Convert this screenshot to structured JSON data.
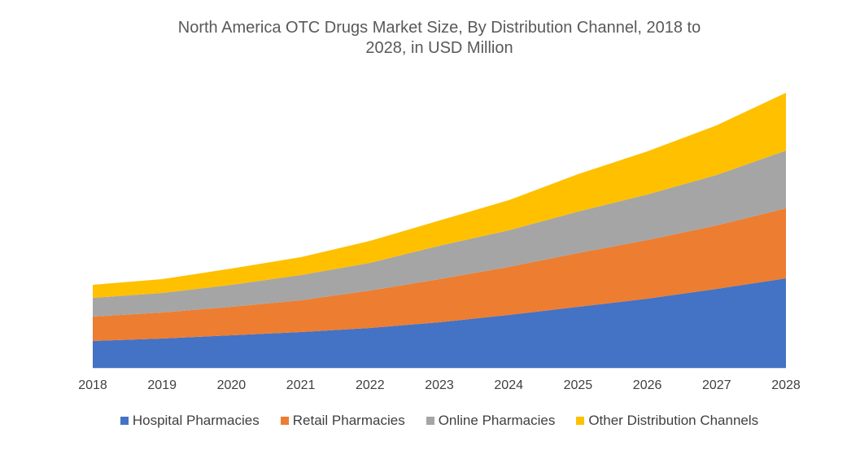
{
  "chart_data": {
    "type": "area",
    "stacked": true,
    "title_line1": "North America OTC Drugs Market Size, By Distribution Channel, 2018 to",
    "title_line2": "2028, in USD Million",
    "xlabel": "",
    "ylabel": "",
    "x": [
      "2018",
      "2019",
      "2020",
      "2021",
      "2022",
      "2023",
      "2024",
      "2025",
      "2026",
      "2027",
      "2028"
    ],
    "series": [
      {
        "name": "Hospital Pharmacies",
        "color": "#4472C4",
        "values": [
          33,
          36,
          40,
          44,
          49,
          56,
          65,
          75,
          85,
          97,
          110
        ]
      },
      {
        "name": "Retail Pharmacies",
        "color": "#ED7D31",
        "values": [
          30,
          32,
          35,
          39,
          46,
          53,
          59,
          66,
          72,
          78,
          86
        ]
      },
      {
        "name": "Online Pharmacies",
        "color": "#A5A5A5",
        "values": [
          23,
          24,
          27,
          31,
          34,
          41,
          45,
          51,
          56,
          62,
          71
        ]
      },
      {
        "name": "Other Distribution Channels",
        "color": "#FFC000",
        "values": [
          16,
          17,
          20,
          22,
          27,
          31,
          37,
          46,
          53,
          61,
          71
        ]
      }
    ],
    "ylim": [
      0,
      350
    ],
    "grid": false,
    "legend_position": "bottom"
  }
}
